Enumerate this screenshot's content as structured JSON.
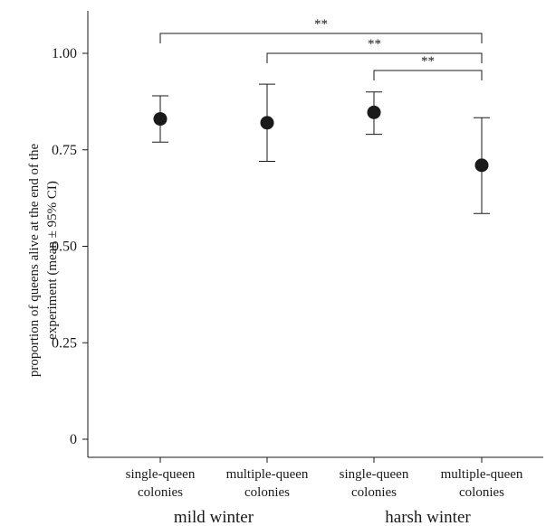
{
  "chart_data": {
    "type": "scatter",
    "ylabel_lines": [
      "proportion of queens alive at the end of the",
      "experiment (mean ± 95% CI)"
    ],
    "ylim": [
      0,
      1.0
    ],
    "yticks": [
      {
        "value": 0,
        "label": "0"
      },
      {
        "value": 0.25,
        "label": "0.25"
      },
      {
        "value": 0.5,
        "label": "0.50"
      },
      {
        "value": 0.75,
        "label": "0.75"
      },
      {
        "value": 1.0,
        "label": "1.00"
      }
    ],
    "categories": [
      {
        "line1": "single-queen",
        "line2": "colonies"
      },
      {
        "line1": "multiple-queen",
        "line2": "colonies"
      },
      {
        "line1": "single-queen",
        "line2": "colonies"
      },
      {
        "line1": "multiple-queen",
        "line2": "colonies"
      }
    ],
    "groups": [
      {
        "label": "mild winter",
        "categories": [
          0,
          1
        ]
      },
      {
        "label": "harsh winter",
        "categories": [
          2,
          3
        ]
      }
    ],
    "points": [
      {
        "mean": 0.83,
        "lower": 0.77,
        "upper": 0.89
      },
      {
        "mean": 0.82,
        "lower": 0.72,
        "upper": 0.92
      },
      {
        "mean": 0.847,
        "lower": 0.79,
        "upper": 0.9
      },
      {
        "mean": 0.71,
        "lower": 0.585,
        "upper": 0.833
      }
    ],
    "significance": [
      {
        "from": 0,
        "to": 3,
        "label": "**"
      },
      {
        "from": 1,
        "to": 3,
        "label": "**"
      },
      {
        "from": 2,
        "to": 3,
        "label": "**"
      }
    ],
    "colors": {
      "marker": "#1a1a1a",
      "axis": "#1a1a1a"
    }
  }
}
